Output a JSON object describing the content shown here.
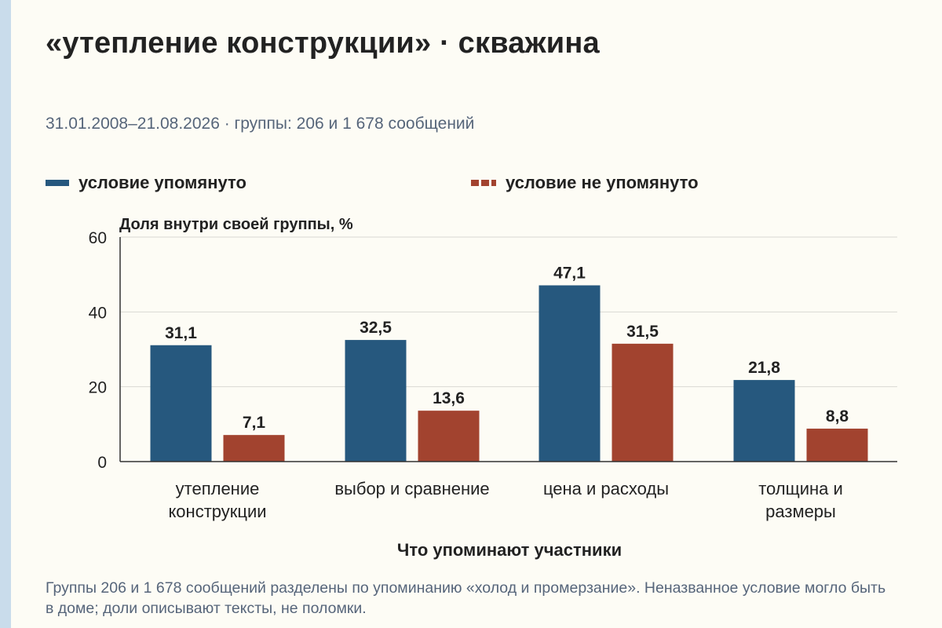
{
  "title": "«утепление конструкции» · скважина",
  "subtitle": "31.01.2008–21.08.2026 · группы: 206 и 1 678 сообщений",
  "footnote": "Группы 206 и 1 678 сообщений разделены по упоминанию «холод и промерзание». Неназванное условие могло быть в доме; доли описывают тексты, не поломки.",
  "colors": {
    "mentioned": "#26587e",
    "not_mentioned": "#a2432f",
    "grid": "#d9d9d4",
    "axis": "#333333",
    "text": "#222222",
    "muted": "#56657a",
    "background": "#fdfcf5"
  },
  "chart_data": {
    "type": "bar",
    "ylabel": "Доля внутри своей группы, %",
    "xlabel": "Что упоминают участники",
    "ylim": [
      0,
      60
    ],
    "yticks": [
      0,
      20,
      40,
      60
    ],
    "grid": true,
    "legend_position": "top",
    "categories": [
      [
        "утепление",
        "конструкции"
      ],
      [
        "выбор и сравнение"
      ],
      [
        "цена и расходы"
      ],
      [
        "толщина и",
        "размеры"
      ]
    ],
    "series": [
      {
        "name": "условие упомянуто",
        "color": "#26587e",
        "values": [
          31.1,
          32.5,
          47.1,
          21.8
        ],
        "labels": [
          "31,1",
          "32,5",
          "47,1",
          "21,8"
        ]
      },
      {
        "name": "условие не упомянуто",
        "color": "#a2432f",
        "values": [
          7.1,
          13.6,
          31.5,
          8.8
        ],
        "labels": [
          "7,1",
          "13,6",
          "31,5",
          "8,8"
        ]
      }
    ]
  }
}
